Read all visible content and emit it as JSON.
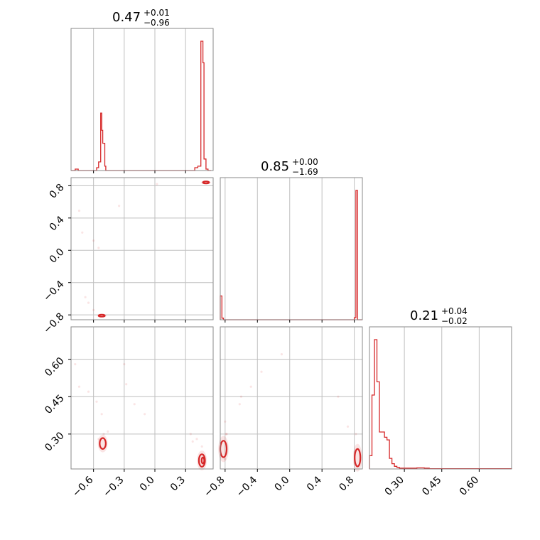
{
  "chart_data": {
    "type": "corner",
    "color": "#d62728",
    "parameters": [
      {
        "title": {
          "median": "0.47",
          "plus": "+0.01",
          "minus": "−0.96"
        },
        "range": [
          -0.82,
          0.57
        ]
      },
      {
        "title": {
          "median": "0.85",
          "plus": "+0.00",
          "minus": "−1.69"
        },
        "range": [
          -0.86,
          0.9
        ]
      },
      {
        "title": {
          "median": "0.21",
          "plus": "+0.04",
          "minus": "−0.02"
        },
        "range": [
          0.16,
          0.73
        ]
      }
    ],
    "tick_labels": {
      "p0": {
        "values": [
          -0.6,
          -0.3,
          0.0,
          0.3
        ],
        "labels": [
          "−0.6",
          "−0.3",
          "0.0",
          "0.3"
        ]
      },
      "p1": {
        "values": [
          -0.8,
          -0.4,
          0.0,
          0.4,
          0.8
        ],
        "labels": [
          "−0.8",
          "−0.4",
          "0.0",
          "0.4",
          "0.8"
        ]
      },
      "p2": {
        "values": [
          0.3,
          0.45,
          0.6
        ],
        "labels": [
          "0.30",
          "0.45",
          "0.60"
        ]
      }
    },
    "histograms": [
      {
        "param": 0,
        "edges": [
          -0.82,
          -0.78,
          -0.75,
          -0.7,
          -0.62,
          -0.57,
          -0.55,
          -0.53,
          -0.52,
          -0.51,
          -0.5,
          -0.49,
          -0.48,
          -0.46,
          0.3,
          0.39,
          0.42,
          0.45,
          0.47,
          0.48,
          0.5,
          0.52,
          0.55
        ],
        "counts": [
          0,
          1,
          0,
          0,
          0,
          2,
          6,
          40,
          28,
          19,
          19,
          3,
          0,
          0,
          0,
          2,
          3,
          90,
          75,
          8,
          1,
          0
        ]
      },
      {
        "param": 1,
        "edges": [
          -0.86,
          -0.84,
          -0.82,
          -0.8,
          0.8,
          0.82,
          0.84,
          0.86,
          0.9
        ],
        "counts": [
          46,
          3,
          0,
          0,
          4,
          250,
          0,
          0
        ]
      },
      {
        "param": 2,
        "edges": [
          0.16,
          0.17,
          0.18,
          0.19,
          0.2,
          0.21,
          0.22,
          0.23,
          0.24,
          0.25,
          0.26,
          0.27,
          0.28,
          0.29,
          0.3,
          0.32,
          0.35,
          0.38,
          0.4,
          0.73
        ],
        "counts": [
          5,
          28,
          49,
          33,
          14,
          14,
          12,
          11,
          4,
          2,
          1,
          0.6,
          0.3,
          0.3,
          0.3,
          0.3,
          0.4,
          0.3,
          0.1
        ]
      }
    ],
    "joint": [
      {
        "x_param": 0,
        "y_param": 1,
        "scatter": [
          [
            -0.71,
            0.22
          ],
          [
            -0.6,
            0.12
          ],
          [
            -0.55,
            0.03
          ],
          [
            0.02,
            0.82
          ],
          [
            -0.35,
            0.55
          ],
          [
            -0.74,
            0.49
          ],
          [
            -0.68,
            -0.58
          ],
          [
            -0.65,
            -0.65
          ],
          [
            -0.6,
            -0.74
          ]
        ],
        "contours": [
          {
            "cx": -0.52,
            "cy": -0.81,
            "rx": 0.03,
            "ry": 0.012
          },
          {
            "cx": 0.5,
            "cy": 0.84,
            "rx": 0.03,
            "ry": 0.012
          }
        ]
      },
      {
        "x_param": 0,
        "y_param": 2,
        "scatter": [
          [
            -0.78,
            0.58
          ],
          [
            -0.74,
            0.49
          ],
          [
            -0.65,
            0.47
          ],
          [
            -0.57,
            0.43
          ],
          [
            -0.52,
            0.38
          ],
          [
            -0.3,
            0.58
          ],
          [
            -0.28,
            0.5
          ],
          [
            -0.2,
            0.42
          ],
          [
            -0.1,
            0.38
          ],
          [
            0.35,
            0.3
          ],
          [
            0.37,
            0.27
          ],
          [
            -0.55,
            0.28
          ],
          [
            -0.5,
            0.3
          ],
          [
            -0.46,
            0.31
          ],
          [
            0.41,
            0.28
          ],
          [
            0.46,
            0.25
          ]
        ],
        "contours": [
          {
            "cx": -0.51,
            "cy": 0.262,
            "rx": 0.03,
            "ry": 0.022
          },
          {
            "cx": 0.46,
            "cy": 0.194,
            "rx": 0.03,
            "ry": 0.025
          },
          {
            "cx": 0.47,
            "cy": 0.194,
            "rx": 0.013,
            "ry": 0.012
          }
        ]
      },
      {
        "x_param": 1,
        "y_param": 2,
        "scatter": [
          [
            -0.8,
            0.35
          ],
          [
            -0.78,
            0.3
          ],
          [
            -0.6,
            0.45
          ],
          [
            -0.35,
            0.55
          ],
          [
            -0.1,
            0.62
          ],
          [
            -0.62,
            0.42
          ],
          [
            -0.48,
            0.49
          ],
          [
            0.6,
            0.45
          ],
          [
            0.72,
            0.33
          ],
          [
            0.82,
            0.3
          ],
          [
            -0.79,
            0.3
          ],
          [
            -0.8,
            0.2
          ]
        ],
        "contours": [
          {
            "cx": -0.82,
            "cy": 0.24,
            "rx": 0.04,
            "ry": 0.033
          },
          {
            "cx": 0.84,
            "cy": 0.205,
            "rx": 0.035,
            "ry": 0.035
          }
        ]
      }
    ],
    "grid": true
  }
}
